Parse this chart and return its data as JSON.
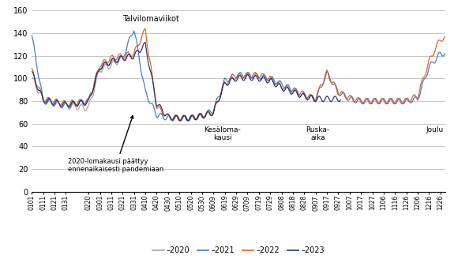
{
  "x_labels": [
    "0101",
    "0111",
    "0121",
    "0131",
    "0220",
    "0301",
    "0311",
    "0321",
    "0331",
    "0410",
    "0420",
    "0430",
    "0510",
    "0520",
    "0530",
    "0609",
    "0619",
    "0629",
    "0709",
    "0719",
    "0729",
    "0808",
    "0818",
    "0828",
    "0907",
    "0917",
    "0927",
    "1007",
    "1017",
    "1027",
    "1106",
    "1116",
    "1126",
    "1206",
    "1216",
    "1226"
  ],
  "yticks": [
    0,
    20,
    40,
    60,
    80,
    100,
    120,
    140,
    160
  ],
  "ylim": [
    0,
    162
  ],
  "colors": {
    "2020": "#b0a090",
    "2021": "#3b78c0",
    "2022": "#e05c20",
    "2023": "#1a3070"
  }
}
